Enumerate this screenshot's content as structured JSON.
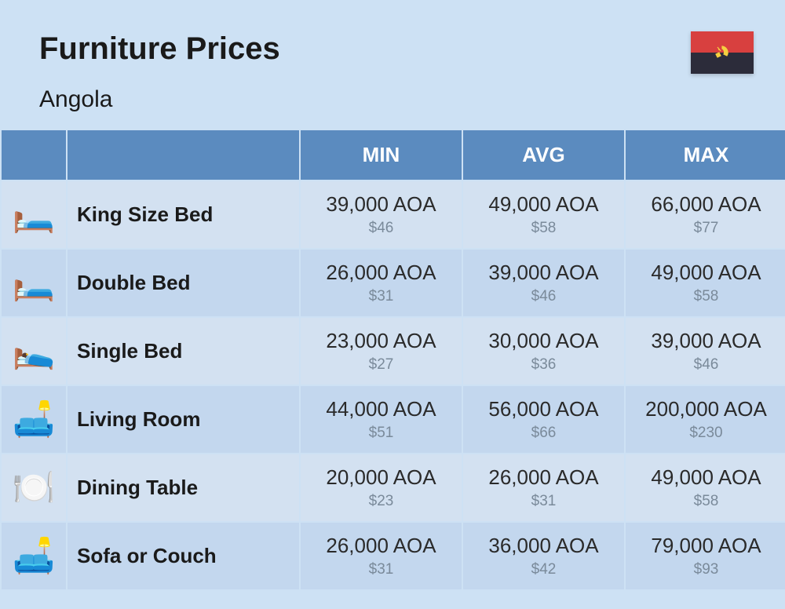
{
  "header": {
    "title": "Furniture Prices",
    "country": "Angola",
    "flag": {
      "top_color": "#d8403f",
      "bottom_color": "#2c2c3a",
      "emblem_color": "#f5d040"
    }
  },
  "table": {
    "header_bg": "#5b8bbf",
    "header_fg": "#ffffff",
    "row_odd_bg": "#d3e1f1",
    "row_even_bg": "#c3d7ee",
    "aoa_color": "#2a2a2a",
    "usd_color": "#7a8a9a",
    "columns": [
      "",
      "",
      "MIN",
      "AVG",
      "MAX"
    ],
    "rows": [
      {
        "icon": "🛏️",
        "name": "King Size Bed",
        "min_aoa": "39,000 AOA",
        "min_usd": "$46",
        "avg_aoa": "49,000 AOA",
        "avg_usd": "$58",
        "max_aoa": "66,000 AOA",
        "max_usd": "$77"
      },
      {
        "icon": "🛏️",
        "name": "Double Bed",
        "min_aoa": "26,000 AOA",
        "min_usd": "$31",
        "avg_aoa": "39,000 AOA",
        "avg_usd": "$46",
        "max_aoa": "49,000 AOA",
        "max_usd": "$58"
      },
      {
        "icon": "🛌",
        "name": "Single Bed",
        "min_aoa": "23,000 AOA",
        "min_usd": "$27",
        "avg_aoa": "30,000 AOA",
        "avg_usd": "$36",
        "max_aoa": "39,000 AOA",
        "max_usd": "$46"
      },
      {
        "icon": "🛋️",
        "name": "Living Room",
        "min_aoa": "44,000 AOA",
        "min_usd": "$51",
        "avg_aoa": "56,000 AOA",
        "avg_usd": "$66",
        "max_aoa": "200,000 AOA",
        "max_usd": "$230"
      },
      {
        "icon": "🍽️",
        "name": "Dining Table",
        "min_aoa": "20,000 AOA",
        "min_usd": "$23",
        "avg_aoa": "26,000 AOA",
        "avg_usd": "$31",
        "max_aoa": "49,000 AOA",
        "max_usd": "$58"
      },
      {
        "icon": "🛋️",
        "name": "Sofa or Couch",
        "min_aoa": "26,000 AOA",
        "min_usd": "$31",
        "avg_aoa": "36,000 AOA",
        "avg_usd": "$42",
        "max_aoa": "79,000 AOA",
        "max_usd": "$93"
      }
    ]
  }
}
